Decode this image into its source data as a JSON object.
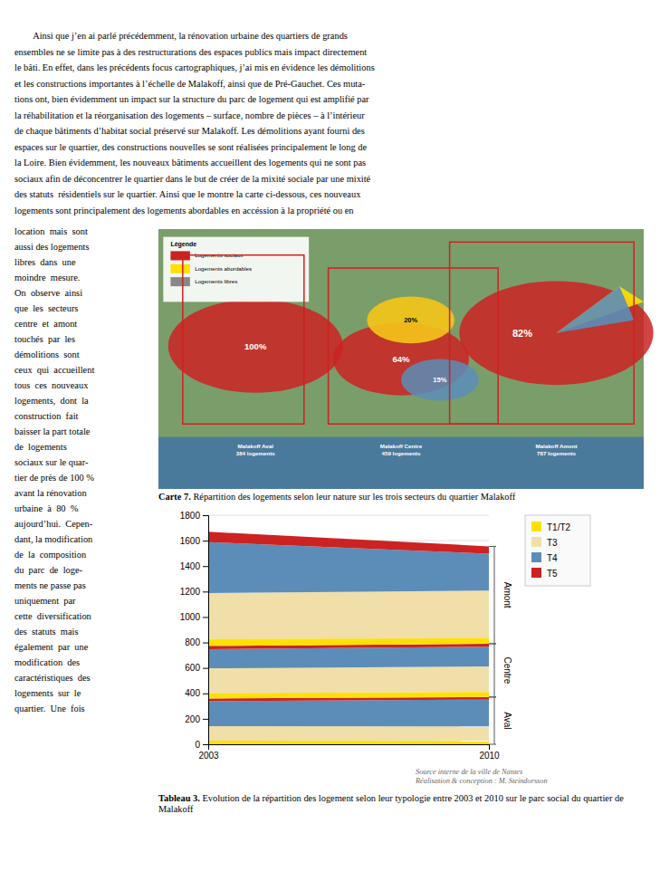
{
  "paragraph_text": [
    "        Ainsi que j’en ai parlé précédemment, la rénovation urbaine des quartiers de grands",
    "ensembles ne se limite pas à des restructurations des espaces publics mais impact directement",
    "le bâti. En effet, dans les précédents focus cartographiques, j’ai mis en évidence les démolitions",
    "et les constructions importantes à l’échelle de Malakoff, ainsi que de Pré-Gauchet. Ces muta-",
    "tions ont, bien évidemment un impact sur la structure du parc de logement qui est amplifié par",
    "la réhabilitation et la réorganisation des logements – surface, nombre de pièces – à l’intérieur",
    "de chaque bâtiments d’habitat social préservé sur Malakoff. Les démolitions ayant fourni des",
    "espaces sur le quartier, des constructions nouvelles se sont réalisées principalement le long de",
    "la Loire. Bien évidemment, les nouveaux bâtiments accueillent des logements qui ne sont pas",
    "sociaux afin de déconcentrer le quartier dans le but de créer de la mixité sociale par une mixité",
    "des statuts  résidentiels sur le quartier. Ainsi que le montre la carte ci-dessous, ces nouveaux",
    "logements sont principalement des logements abordables en accéssion à la propriété ou en"
  ],
  "left_col_text": [
    "location  mais  sont",
    "aussi des logements",
    "libres  dans  une",
    "moindre  mesure.",
    "On  observe  ainsi",
    "que  les  secteurs",
    "centre  et  amont",
    "touchés  par  les",
    "démolitions  sont",
    "ceux  qui  accueillent",
    "tous  ces  nouveaux",
    "logements,  dont  la",
    "construction  fait",
    "baisser la part totale",
    "de  logements",
    "sociaux sur le quar-",
    "tier de près de 100 %",
    "avant la rénovation",
    "urbaine  à  80  %",
    "aujourd’hui.  Cepen-",
    "dant, la modification",
    "de  la  composition",
    "du  parc  de  loge-",
    "ments ne passe pas",
    "uniquement  par",
    "cette  diversification",
    "des  statuts  mais",
    "également  par  une",
    "modification  des",
    "caractéristiques  des",
    "logements  sur  le",
    "quartier.  Une  fois"
  ],
  "map": {
    "circles": [
      {
        "label": "100%",
        "color": "#CC2222"
      },
      {
        "label": "64%",
        "color": "#CC2222"
      },
      {
        "label": "15%",
        "color": "#5B8DB8"
      },
      {
        "label": "82%",
        "color": "#CC2222"
      },
      {
        "label": "20%",
        "color": "#F5C518"
      }
    ],
    "wedges": [
      {
        "color": "#FFE000"
      },
      {
        "color": "#5B8DB8"
      }
    ],
    "legend_title": "Légende",
    "legend": [
      {
        "name": "Logements sociaux",
        "color": "#CC2222"
      },
      {
        "name": "Logements abordables",
        "color": "#FFE000"
      },
      {
        "name": "Logements libres",
        "color": "#888888"
      }
    ],
    "sectors": [
      [
        "Malakoff Aval",
        "384 logements"
      ],
      [
        "Malakoff Centre",
        "459 logements"
      ],
      [
        "Malakoff Amont",
        "787 logements"
      ]
    ]
  },
  "map_caption": [
    "Carte 7.",
    " Répartition des logements selon leur nature sur les trois secteurs du quartier Malakoff"
  ],
  "chart_data": {
    "type": "area",
    "stacked": true,
    "x": [
      2003,
      2010
    ],
    "xlim": [
      2003,
      2010
    ],
    "xticks": [
      2003,
      2010
    ],
    "ylim": [
      0,
      1800
    ],
    "yticks": [
      0,
      200,
      400,
      600,
      800,
      1000,
      1200,
      1400,
      1600,
      1800
    ],
    "grid": true,
    "legend": "upper right",
    "series": [
      {
        "name": "T1/T2",
        "group": "Aval",
        "color": "#FFE000",
        "values": [
          28,
          26
        ]
      },
      {
        "name": "T3",
        "group": "Aval",
        "color": "#F0DFA8",
        "values": [
          115,
          115
        ]
      },
      {
        "name": "T4",
        "group": "Aval",
        "color": "#5B8DB8",
        "values": [
          195,
          210
        ]
      },
      {
        "name": "T5",
        "group": "Aval",
        "color": "#CC2222",
        "values": [
          22,
          20
        ]
      },
      {
        "name": "T1/T2",
        "group": "Centre",
        "color": "#FFE000",
        "values": [
          42,
          40
        ]
      },
      {
        "name": "T3",
        "group": "Centre",
        "color": "#F0DFA8",
        "values": [
          195,
          200
        ]
      },
      {
        "name": "T4",
        "group": "Centre",
        "color": "#5B8DB8",
        "values": [
          150,
          155
        ]
      },
      {
        "name": "T5",
        "group": "Centre",
        "color": "#CC2222",
        "values": [
          26,
          24
        ]
      },
      {
        "name": "T1/T2",
        "group": "Amont",
        "color": "#FFE000",
        "values": [
          55,
          42
        ]
      },
      {
        "name": "T3",
        "group": "Amont",
        "color": "#F0DFA8",
        "values": [
          360,
          375
        ]
      },
      {
        "name": "T4",
        "group": "Amont",
        "color": "#5B8DB8",
        "values": [
          400,
          290
        ]
      },
      {
        "name": "T5",
        "group": "Amont",
        "color": "#CC2222",
        "values": [
          82,
          58
        ]
      }
    ]
  },
  "source": [
    "Source interne de la ville de Nantes",
    "Réalisation & conception : M. Steindorsson"
  ],
  "chart_caption": [
    "Tableau 3.",
    " Evolution de la répartition des logement selon leur typologie entre 2003 et 2010 sur le parc social du quartier de Malakoff"
  ]
}
